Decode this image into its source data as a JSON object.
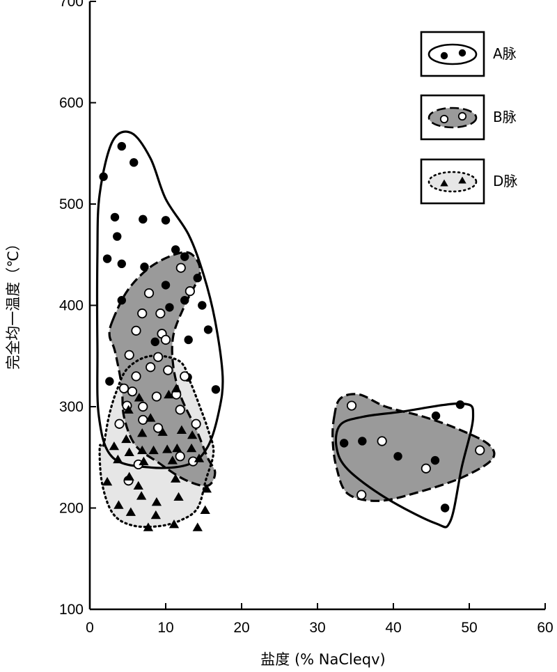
{
  "chart_data": {
    "type": "scatter",
    "xlabel": "盐度 (% NaCleqv)",
    "ylabel": "完全均一温度（℃）",
    "xlim": [
      0,
      60
    ],
    "ylim": [
      100,
      700
    ],
    "x_ticks": [
      0,
      10,
      20,
      30,
      40,
      50,
      60
    ],
    "y_ticks": [
      100,
      200,
      300,
      400,
      500,
      600,
      700
    ],
    "grid": false,
    "legend_position": "top-right",
    "colors": {
      "line": "#000000",
      "fill_B": "#9a9a9a",
      "fill_D": "#e6e6e6"
    },
    "series": [
      {
        "name": "A脉",
        "marker": "filled-circle",
        "points": [
          [
            1.8,
            527
          ],
          [
            4.2,
            557
          ],
          [
            5.8,
            541
          ],
          [
            2.3,
            446
          ],
          [
            3.3,
            487
          ],
          [
            3.6,
            468
          ],
          [
            4.2,
            441
          ],
          [
            7.0,
            485
          ],
          [
            7.2,
            438
          ],
          [
            10.0,
            484
          ],
          [
            10.0,
            420
          ],
          [
            11.3,
            455
          ],
          [
            12.5,
            448
          ],
          [
            14.2,
            427
          ],
          [
            12.5,
            405
          ],
          [
            4.2,
            405
          ],
          [
            14.8,
            400
          ],
          [
            10.5,
            398
          ],
          [
            15.6,
            376
          ],
          [
            8.6,
            364
          ],
          [
            13.0,
            366
          ],
          [
            2.6,
            325
          ],
          [
            12.9,
            329
          ],
          [
            16.6,
            317
          ],
          [
            33.5,
            264
          ],
          [
            35.9,
            266
          ],
          [
            40.6,
            251
          ],
          [
            45.6,
            291
          ],
          [
            48.8,
            302
          ],
          [
            45.5,
            247
          ],
          [
            46.8,
            200
          ]
        ]
      },
      {
        "name": "B脉",
        "marker": "open-circle",
        "points": [
          [
            12.0,
            437
          ],
          [
            13.2,
            414
          ],
          [
            7.8,
            412
          ],
          [
            6.9,
            392
          ],
          [
            9.3,
            392
          ],
          [
            6.1,
            375
          ],
          [
            9.5,
            372
          ],
          [
            10.0,
            366
          ],
          [
            5.2,
            351
          ],
          [
            9.0,
            349
          ],
          [
            6.1,
            330
          ],
          [
            10.3,
            336
          ],
          [
            8.0,
            339
          ],
          [
            12.5,
            330
          ],
          [
            5.6,
            315
          ],
          [
            4.5,
            318
          ],
          [
            11.4,
            312
          ],
          [
            8.8,
            310
          ],
          [
            4.9,
            301
          ],
          [
            7.0,
            300
          ],
          [
            11.9,
            297
          ],
          [
            3.9,
            283
          ],
          [
            7.0,
            287
          ],
          [
            9.0,
            279
          ],
          [
            14.0,
            283
          ],
          [
            11.9,
            251
          ],
          [
            6.4,
            243
          ],
          [
            13.6,
            246
          ],
          [
            5.1,
            227
          ],
          [
            34.5,
            301
          ],
          [
            38.5,
            266
          ],
          [
            35.8,
            213
          ],
          [
            44.3,
            239
          ],
          [
            51.4,
            257
          ]
        ]
      },
      {
        "name": "D脉",
        "marker": "filled-triangle",
        "points": [
          [
            6.5,
            309
          ],
          [
            10.4,
            312
          ],
          [
            11.4,
            318
          ],
          [
            5.1,
            297
          ],
          [
            8.0,
            289
          ],
          [
            4.8,
            268
          ],
          [
            6.9,
            274
          ],
          [
            9.6,
            275
          ],
          [
            12.1,
            277
          ],
          [
            13.5,
            272
          ],
          [
            3.2,
            261
          ],
          [
            5.2,
            255
          ],
          [
            6.9,
            257
          ],
          [
            8.4,
            257
          ],
          [
            10.2,
            258
          ],
          [
            11.5,
            259
          ],
          [
            13.4,
            259
          ],
          [
            3.7,
            248
          ],
          [
            7.1,
            246
          ],
          [
            10.9,
            247
          ],
          [
            14.4,
            249
          ],
          [
            2.3,
            226
          ],
          [
            5.2,
            231
          ],
          [
            6.4,
            222
          ],
          [
            11.3,
            229
          ],
          [
            15.4,
            219
          ],
          [
            3.8,
            203
          ],
          [
            6.8,
            212
          ],
          [
            8.8,
            206
          ],
          [
            11.7,
            211
          ],
          [
            15.2,
            198
          ],
          [
            5.4,
            196
          ],
          [
            8.7,
            193
          ],
          [
            11.1,
            184
          ],
          [
            14.2,
            181
          ],
          [
            7.7,
            181
          ]
        ]
      }
    ],
    "regions": [
      {
        "name": "A脉",
        "style": "solid",
        "fill": "none",
        "polygons": [
          [
            [
              1.3,
              510
            ],
            [
              3,
              562
            ],
            [
              5.5,
              570
            ],
            [
              8,
              545
            ],
            [
              10,
              505
            ],
            [
              13,
              470
            ],
            [
              15,
              430
            ],
            [
              16.5,
              385
            ],
            [
              17.5,
              330
            ],
            [
              17,
              295
            ],
            [
              15.5,
              260
            ],
            [
              13,
              243
            ],
            [
              8,
              240
            ],
            [
              3,
              250
            ],
            [
              1.2,
              290
            ],
            [
              1.0,
              360
            ],
            [
              1.0,
              450
            ]
          ],
          [
            [
              33,
              282
            ],
            [
              36,
              290
            ],
            [
              41,
              295
            ],
            [
              49,
              303
            ],
            [
              50.5,
              290
            ],
            [
              49,
              240
            ],
            [
              47.5,
              187
            ],
            [
              45.5,
              185
            ],
            [
              39,
              210
            ],
            [
              34,
              238
            ],
            [
              32.5,
              260
            ]
          ]
        ]
      },
      {
        "name": "B脉",
        "style": "dashed",
        "fill": "#9a9a9a",
        "polygons": [
          [
            [
              3,
              385
            ],
            [
              5,
              415
            ],
            [
              8,
              438
            ],
            [
              11.5,
              451
            ],
            [
              13.5,
              450
            ],
            [
              14.5,
              432
            ],
            [
              12.5,
              400
            ],
            [
              11,
              370
            ],
            [
              11,
              340
            ],
            [
              12,
              310
            ],
            [
              14,
              278
            ],
            [
              15.5,
              250
            ],
            [
              16.5,
              235
            ],
            [
              15.5,
              222
            ],
            [
              12.5,
              228
            ],
            [
              9,
              245
            ],
            [
              6,
              262
            ],
            [
              4.5,
              290
            ],
            [
              4.2,
              320
            ],
            [
              3.3,
              355
            ],
            [
              2.6,
              370
            ]
          ],
          [
            [
              32.2,
              290
            ],
            [
              33,
              308
            ],
            [
              35.5,
              312
            ],
            [
              39,
              300
            ],
            [
              44,
              290
            ],
            [
              48.5,
              278
            ],
            [
              52.5,
              263
            ],
            [
              53,
              248
            ],
            [
              49,
              230
            ],
            [
              43,
              215
            ],
            [
              38,
              207
            ],
            [
              34,
              214
            ],
            [
              32.5,
              240
            ],
            [
              32.0,
              268
            ]
          ]
        ]
      },
      {
        "name": "D脉",
        "style": "dotted",
        "fill": "#e6e6e6",
        "polygons": [
          [
            [
              1.8,
              262
            ],
            [
              2.5,
              290
            ],
            [
              3.5,
              315
            ],
            [
              5,
              338
            ],
            [
              8,
              350
            ],
            [
              11.8,
              345
            ],
            [
              13.2,
              325
            ],
            [
              14.5,
              300
            ],
            [
              15.6,
              277
            ],
            [
              16.3,
              255
            ],
            [
              15.3,
              228
            ],
            [
              14.2,
              200
            ],
            [
              12,
              188
            ],
            [
              9,
              182
            ],
            [
              5.5,
              183
            ],
            [
              3,
              195
            ],
            [
              1.6,
              225
            ],
            [
              1.3,
              260
            ]
          ]
        ]
      }
    ]
  },
  "legend": {
    "items": [
      {
        "label": "A脉",
        "style": "solid",
        "fill": "none",
        "marker": "filled-circle"
      },
      {
        "label": "B脉",
        "style": "dashed",
        "fill": "#9a9a9a",
        "marker": "open-circle"
      },
      {
        "label": "D脉",
        "style": "dotted",
        "fill": "#e6e6e6",
        "marker": "filled-triangle"
      }
    ]
  }
}
